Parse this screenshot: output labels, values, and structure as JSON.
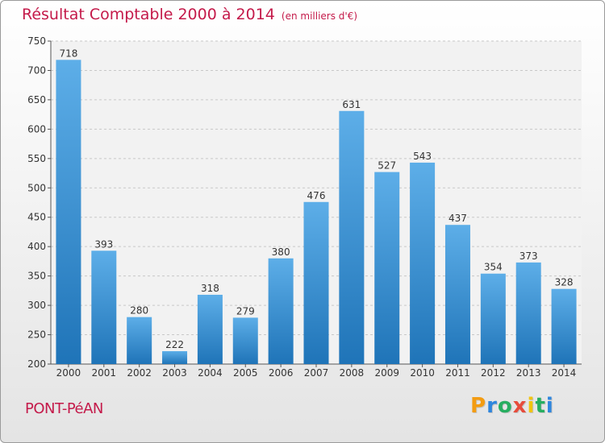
{
  "chart_data": {
    "type": "bar",
    "title": "Résultat Comptable 2000 à 2014",
    "subtitle": "(en milliers d'€)",
    "categories": [
      "2000",
      "2001",
      "2002",
      "2003",
      "2004",
      "2005",
      "2006",
      "2007",
      "2008",
      "2009",
      "2010",
      "2011",
      "2012",
      "2013",
      "2014"
    ],
    "values": [
      718,
      393,
      280,
      222,
      318,
      279,
      380,
      476,
      631,
      527,
      543,
      437,
      354,
      373,
      328
    ],
    "ylim": [
      200,
      750
    ],
    "yticks": [
      200,
      250,
      300,
      350,
      400,
      450,
      500,
      550,
      600,
      650,
      700,
      750
    ],
    "grid": true,
    "xlabel": "",
    "ylabel": ""
  },
  "footer": {
    "place": "PONT-PéAN",
    "logo_letters": [
      "P",
      "r",
      "o",
      "x",
      "i",
      "t",
      "i"
    ],
    "logo_colors": [
      "#f39c12",
      "#2e86de",
      "#27ae60",
      "#e74c3c",
      "#f1c40f",
      "#27ae60",
      "#2e86de"
    ]
  },
  "colors": {
    "title": "#c41a4a",
    "bar_top": "#5daee8",
    "bar_bottom": "#1f74b8"
  }
}
